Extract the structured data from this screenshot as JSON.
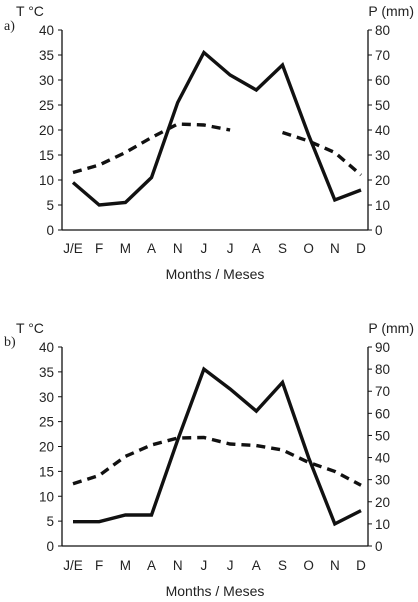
{
  "chart_data": [
    {
      "type": "line",
      "panel_label": "a)",
      "categories": [
        "J/E",
        "F",
        "M",
        "A",
        "N",
        "J",
        "J",
        "A",
        "S",
        "O",
        "N",
        "D"
      ],
      "xlabel": "Months / Meses",
      "ylabel_left": "T °C",
      "ylabel_right": "P (mm)",
      "ylim_left": [
        0,
        40
      ],
      "ylim_right": [
        0,
        80
      ],
      "yticks_left": [
        0,
        5,
        10,
        15,
        20,
        25,
        30,
        35,
        40
      ],
      "yticks_right": [
        0,
        10,
        20,
        30,
        40,
        50,
        60,
        70,
        80
      ],
      "grid": false,
      "series": [
        {
          "axis": "right",
          "style": "solid",
          "values": [
            19,
            10,
            11,
            21,
            51,
            71,
            62,
            56,
            66,
            38,
            12,
            16
          ]
        },
        {
          "axis": "left",
          "style": "dashed",
          "values": [
            11.5,
            13,
            15.5,
            18.5,
            21.2,
            21,
            20,
            null,
            19.5,
            17.8,
            15.5,
            11
          ]
        }
      ]
    },
    {
      "type": "line",
      "panel_label": "b)",
      "categories": [
        "J/E",
        "F",
        "M",
        "A",
        "N",
        "J",
        "J",
        "A",
        "S",
        "O",
        "N",
        "D"
      ],
      "xlabel": "Months / Meses",
      "ylabel_left": "T °C",
      "ylabel_right": "P (mm)",
      "ylim_left": [
        0,
        40
      ],
      "ylim_right": [
        0,
        90
      ],
      "yticks_left": [
        0,
        5,
        10,
        15,
        20,
        25,
        30,
        35,
        40
      ],
      "yticks_right": [
        0,
        10,
        20,
        30,
        40,
        50,
        60,
        70,
        80,
        90
      ],
      "grid": false,
      "series": [
        {
          "axis": "right",
          "style": "solid",
          "values": [
            11,
            11,
            14,
            14,
            48,
            80,
            71,
            61,
            74,
            40,
            10,
            16
          ]
        },
        {
          "axis": "left",
          "style": "dashed",
          "values": [
            12.5,
            14.2,
            18,
            20.3,
            21.7,
            21.8,
            20.5,
            20.2,
            19.3,
            16.8,
            15,
            12.2
          ]
        }
      ]
    }
  ]
}
